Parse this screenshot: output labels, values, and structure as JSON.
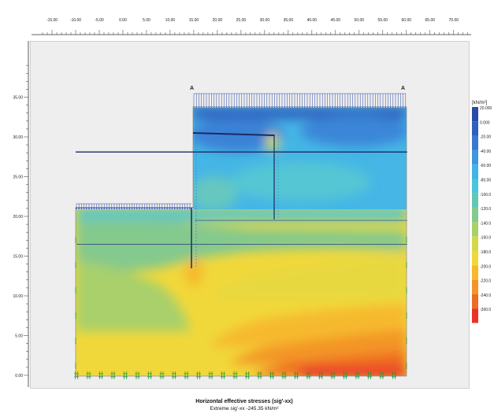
{
  "ruler_top": {
    "ticks": [
      {
        "label": "-15.00",
        "x": -15
      },
      {
        "label": "-10.00",
        "x": -10
      },
      {
        "label": "-5.00",
        "x": -5
      },
      {
        "label": "0.00",
        "x": 0
      },
      {
        "label": "5.00",
        "x": 5
      },
      {
        "label": "10.00",
        "x": 10
      },
      {
        "label": "15.00",
        "x": 15
      },
      {
        "label": "20.00",
        "x": 20
      },
      {
        "label": "25.00",
        "x": 25
      },
      {
        "label": "30.00",
        "x": 30
      },
      {
        "label": "35.00",
        "x": 35
      },
      {
        "label": "40.00",
        "x": 40
      },
      {
        "label": "45.00",
        "x": 45
      },
      {
        "label": "50.00",
        "x": 50
      },
      {
        "label": "55.00",
        "x": 55
      },
      {
        "label": "60.00",
        "x": 60
      },
      {
        "label": "65.00",
        "x": 65
      },
      {
        "label": "70.00",
        "x": 70
      }
    ]
  },
  "ruler_left": {
    "ticks": [
      {
        "label": "35.00",
        "y": 35
      },
      {
        "label": "30.00",
        "y": 30
      },
      {
        "label": "25.00",
        "y": 25
      },
      {
        "label": "20.00",
        "y": 20
      },
      {
        "label": "15.00",
        "y": 15
      },
      {
        "label": "10.00",
        "y": 10
      },
      {
        "label": "5.00",
        "y": 5
      },
      {
        "label": "0.00",
        "y": 0
      }
    ]
  },
  "model": {
    "section_label_left": "A",
    "section_label_right": "A",
    "ground_left_level": 20,
    "ground_right_level": 33,
    "left_boundary_x": -10,
    "step_x": 15,
    "right_boundary_x": 60,
    "bottom_level": 0,
    "strut_level": 28.2,
    "layer_levels": [
      19.6,
      16.6
    ]
  },
  "legend": {
    "unit": "[kN/m²]",
    "items": [
      {
        "label": "20.000",
        "color": "#2a4aa8"
      },
      {
        "label": "0.000",
        "color": "#2f5fbf"
      },
      {
        "label": "-20.00",
        "color": "#3a79d2"
      },
      {
        "label": "-40.00",
        "color": "#3f96de"
      },
      {
        "label": "-60.00",
        "color": "#42b3e6"
      },
      {
        "label": "-80.00",
        "color": "#4cc4d9"
      },
      {
        "label": "-100.0",
        "color": "#62c8b4"
      },
      {
        "label": "-120.0",
        "color": "#84c98d"
      },
      {
        "label": "-140.0",
        "color": "#a9d06a"
      },
      {
        "label": "-160.0",
        "color": "#d6d84a"
      },
      {
        "label": "-180.0",
        "color": "#f1d83a"
      },
      {
        "label": "-200.0",
        "color": "#f6b92e"
      },
      {
        "label": "-220.0",
        "color": "#f39528"
      },
      {
        "label": "-240.0",
        "color": "#ef6c23"
      },
      {
        "label": "-260.0",
        "color": "#e8332a"
      }
    ]
  },
  "caption": {
    "title": "Horizontal effective stresses (sig'-xx)",
    "extreme": "Extreme sig'-xx -245.35 kN/m²"
  }
}
